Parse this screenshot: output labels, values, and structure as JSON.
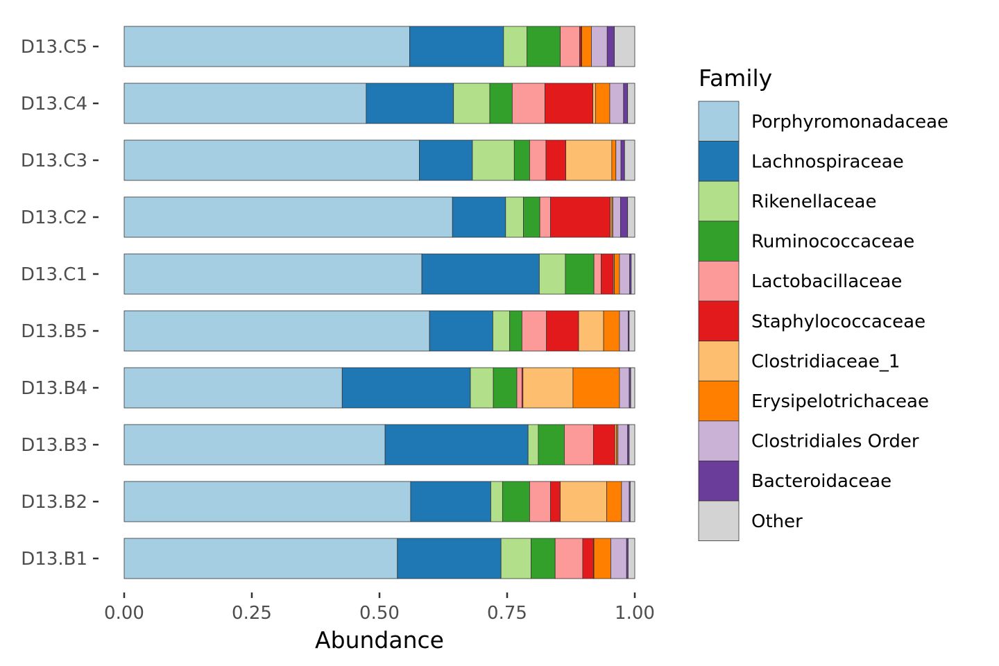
{
  "chart_data": {
    "type": "bar",
    "orientation": "horizontal",
    "stacked": true,
    "xlabel": "Abundance",
    "ylabel": "",
    "xlim": [
      0,
      1
    ],
    "xticks": [
      "0.00",
      "0.25",
      "0.50",
      "0.75",
      "1.00"
    ],
    "xtick_values": [
      0,
      0.25,
      0.5,
      0.75,
      1.0
    ],
    "grid": false,
    "legend": {
      "title": "Family",
      "placement": "right"
    },
    "categories": [
      "D13.C5",
      "D13.C4",
      "D13.C3",
      "D13.C2",
      "D13.C1",
      "D13.B5",
      "D13.B4",
      "D13.B3",
      "D13.B2",
      "D13.B1"
    ],
    "series": [
      {
        "name": "Porphyromonadaceae",
        "color": "#A6CEE3",
        "values": [
          0.559,
          0.474,
          0.578,
          0.643,
          0.583,
          0.598,
          0.427,
          0.511,
          0.561,
          0.535
        ]
      },
      {
        "name": "Lachnospiraceae",
        "color": "#1F78B4",
        "values": [
          0.184,
          0.171,
          0.104,
          0.104,
          0.23,
          0.124,
          0.251,
          0.28,
          0.157,
          0.203
        ]
      },
      {
        "name": "Rikenellaceae",
        "color": "#B2DF8A",
        "values": [
          0.046,
          0.071,
          0.082,
          0.035,
          0.051,
          0.033,
          0.045,
          0.02,
          0.023,
          0.059
        ]
      },
      {
        "name": "Ruminococcaceae",
        "color": "#33A02C",
        "values": [
          0.065,
          0.044,
          0.03,
          0.032,
          0.056,
          0.024,
          0.046,
          0.051,
          0.053,
          0.047
        ]
      },
      {
        "name": "Lactobacillaceae",
        "color": "#FB9A99",
        "values": [
          0.038,
          0.064,
          0.032,
          0.021,
          0.014,
          0.048,
          0.01,
          0.057,
          0.041,
          0.054
        ]
      },
      {
        "name": "Staphylococcaceae",
        "color": "#E31A1C",
        "values": [
          0.003,
          0.094,
          0.039,
          0.117,
          0.024,
          0.063,
          0.002,
          0.042,
          0.019,
          0.021
        ]
      },
      {
        "name": "Clostridiaceae_1",
        "color": "#FDBF6F",
        "values": [
          0.001,
          0.005,
          0.09,
          0.003,
          0.002,
          0.049,
          0.098,
          0.003,
          0.091,
          0.001
        ]
      },
      {
        "name": "Erysipelotrichaceae",
        "color": "#FF7F00",
        "values": [
          0.019,
          0.028,
          0.008,
          0.002,
          0.01,
          0.031,
          0.091,
          0.003,
          0.029,
          0.033
        ]
      },
      {
        "name": "Clostridiales Order",
        "color": "#CAB2D6",
        "values": [
          0.031,
          0.027,
          0.01,
          0.015,
          0.02,
          0.017,
          0.019,
          0.019,
          0.015,
          0.031
        ]
      },
      {
        "name": "Bacteroidaceae",
        "color": "#6A3D9A",
        "values": [
          0.014,
          0.008,
          0.007,
          0.014,
          0.003,
          0.002,
          0.003,
          0.003,
          0.002,
          0.003
        ]
      },
      {
        "name": "Other",
        "color": "#D3D3D3",
        "values": [
          0.04,
          0.014,
          0.02,
          0.014,
          0.007,
          0.011,
          0.008,
          0.011,
          0.009,
          0.013
        ]
      }
    ]
  }
}
